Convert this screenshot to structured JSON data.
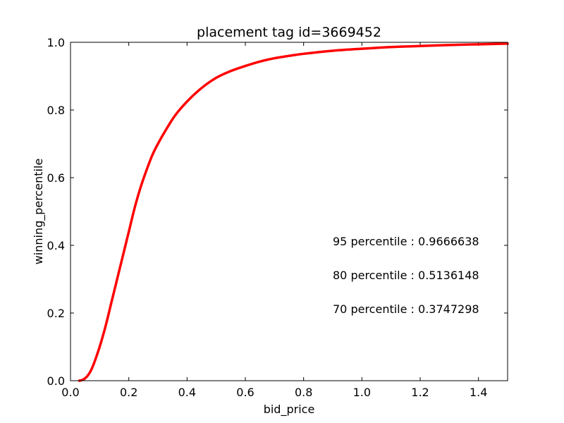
{
  "chart_data": {
    "type": "line",
    "title": "placement tag id=3669452",
    "xlabel": "bid_price",
    "ylabel": "winning_percentile",
    "xlim": [
      0.0,
      1.5
    ],
    "ylim": [
      0.0,
      1.0
    ],
    "x_ticks": [
      "0.0",
      "0.2",
      "0.4",
      "0.6",
      "0.8",
      "1.0",
      "1.2",
      "1.4"
    ],
    "x_tick_values": [
      0.0,
      0.2,
      0.4,
      0.6,
      0.8,
      1.0,
      1.2,
      1.4
    ],
    "y_ticks": [
      "0.0",
      "0.2",
      "0.4",
      "0.6",
      "0.8",
      "1.0"
    ],
    "y_tick_values": [
      0.0,
      0.2,
      0.4,
      0.6,
      0.8,
      1.0
    ],
    "grid": false,
    "series": [
      {
        "color": "#ff0000",
        "x": [
          0.03,
          0.04,
          0.05,
          0.06,
          0.07,
          0.08,
          0.1,
          0.12,
          0.14,
          0.16,
          0.18,
          0.2,
          0.22,
          0.24,
          0.26,
          0.28,
          0.3,
          0.33,
          0.36,
          0.4,
          0.45,
          0.5,
          0.55,
          0.6,
          0.65,
          0.7,
          0.75,
          0.8,
          0.9,
          1.0,
          1.1,
          1.2,
          1.3,
          1.4,
          1.5
        ],
        "y": [
          0.0,
          0.002,
          0.007,
          0.016,
          0.03,
          0.05,
          0.1,
          0.16,
          0.23,
          0.3,
          0.37,
          0.44,
          0.51,
          0.57,
          0.62,
          0.665,
          0.7,
          0.745,
          0.785,
          0.825,
          0.865,
          0.895,
          0.915,
          0.93,
          0.943,
          0.953,
          0.96,
          0.966,
          0.975,
          0.981,
          0.986,
          0.989,
          0.992,
          0.994,
          0.996
        ]
      }
    ],
    "annotations": [
      "95 percentile : 0.9666638",
      "80 percentile : 0.5136148",
      "70 percentile : 0.3747298"
    ]
  }
}
